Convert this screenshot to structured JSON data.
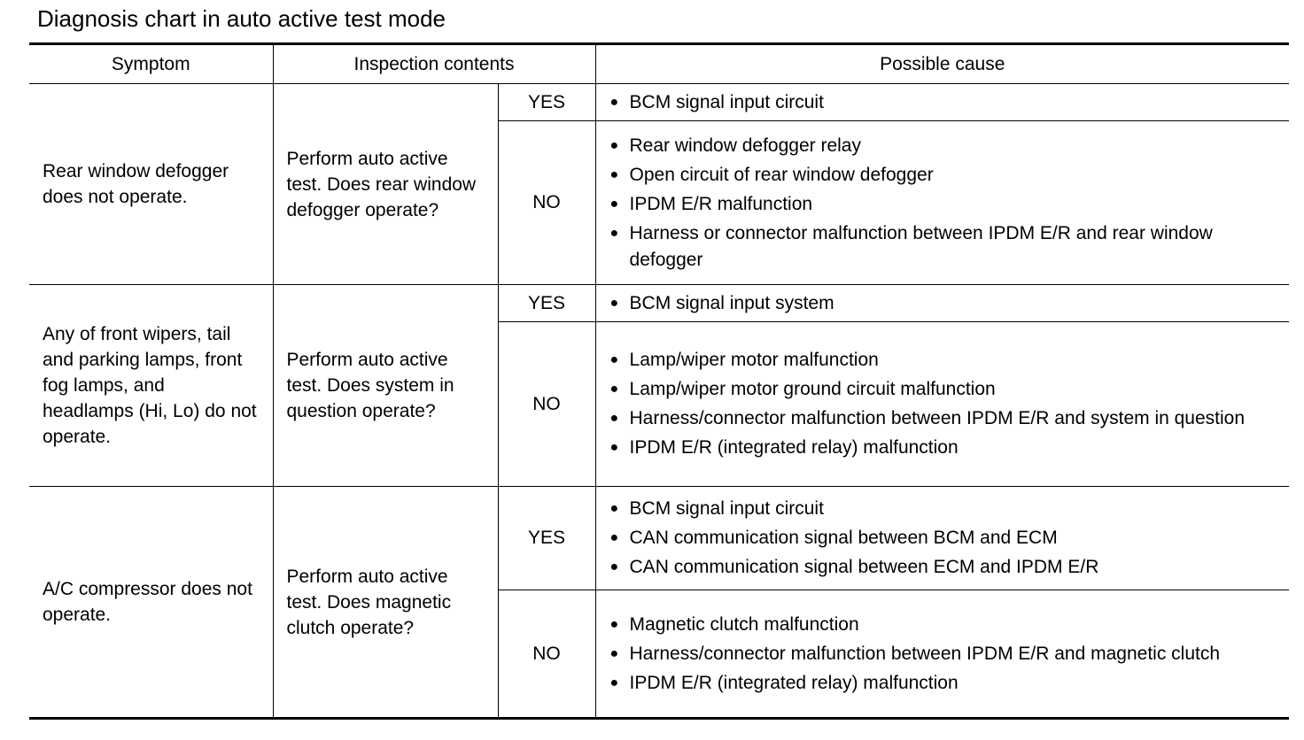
{
  "title": "Diagnosis chart in auto active test mode",
  "headers": {
    "symptom": "Symptom",
    "inspection": "Inspection contents",
    "cause": "Possible cause"
  },
  "rows": [
    {
      "symptom": "Rear window defogger does not operate.",
      "inspection": "Perform auto active test. Does rear window defogger operate?",
      "yes_label": "YES",
      "yes_causes": [
        "BCM signal input circuit"
      ],
      "no_label": "NO",
      "no_causes": [
        "Rear window defogger relay",
        "Open circuit of rear window defogger",
        "IPDM E/R malfunction",
        "Harness or connector malfunction between IPDM E/R and rear window defogger"
      ]
    },
    {
      "symptom": "Any of front wipers, tail and parking lamps, front fog lamps, and headlamps (Hi, Lo) do not operate.",
      "inspection": "Perform auto active test. Does system in question operate?",
      "yes_label": "YES",
      "yes_causes": [
        "BCM signal input system"
      ],
      "no_label": "NO",
      "no_causes": [
        "Lamp/wiper motor malfunction",
        "Lamp/wiper motor ground circuit malfunction",
        "Harness/connector malfunction between IPDM E/R and system in question",
        "IPDM E/R (integrated relay) malfunction"
      ]
    },
    {
      "symptom": "A/C compressor does not operate.",
      "inspection": "Perform auto active test. Does magnetic clutch operate?",
      "yes_label": "YES",
      "yes_causes": [
        "BCM signal input circuit",
        "CAN communication signal between BCM and ECM",
        "CAN communication signal between ECM and IPDM E/R"
      ],
      "no_label": "NO",
      "no_causes": [
        "Magnetic clutch malfunction",
        "Harness/connector malfunction between IPDM E/R and magnetic clutch",
        "IPDM E/R (integrated relay) malfunction"
      ]
    }
  ]
}
